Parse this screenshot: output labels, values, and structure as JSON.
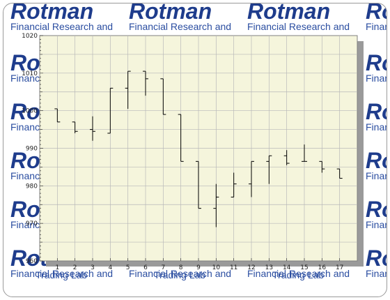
{
  "watermark": {
    "logo": "Rotman",
    "line1": "Financial Research and",
    "line2": "Trading Lab"
  },
  "colors": {
    "plot_bg": "#f5f5dc",
    "grid": "#b8b8b8",
    "bars": "#000000",
    "logo": "#1e3c8c"
  },
  "chart_data": {
    "type": "ohlc",
    "title": "",
    "xlabel": "",
    "ylabel": "",
    "ylim": [
      960,
      1020
    ],
    "xlim": [
      0,
      18
    ],
    "yticks": [
      960,
      970,
      980,
      990,
      1000,
      1010,
      1020
    ],
    "xticks": [
      1,
      2,
      3,
      4,
      5,
      6,
      7,
      8,
      9,
      10,
      11,
      12,
      13,
      14,
      15,
      16,
      17
    ],
    "grid": true,
    "points": [
      {
        "x": 1,
        "open": 1000.5,
        "high": 1000.5,
        "low": 997,
        "close": 997
      },
      {
        "x": 2,
        "open": 997,
        "high": 997,
        "low": 994,
        "close": 994.5
      },
      {
        "x": 3,
        "open": 995,
        "high": 998.5,
        "low": 992,
        "close": 994.5
      },
      {
        "x": 4,
        "open": 994,
        "high": 1006,
        "low": 994,
        "close": 1006
      },
      {
        "x": 5,
        "open": 1006,
        "high": 1010.5,
        "low": 1000.5,
        "close": 1010.5
      },
      {
        "x": 6,
        "open": 1010.5,
        "high": 1010.5,
        "low": 1004,
        "close": 1008.5
      },
      {
        "x": 7,
        "open": 1008.5,
        "high": 1008.5,
        "low": 999,
        "close": 999
      },
      {
        "x": 8,
        "open": 999,
        "high": 999,
        "low": 986.5,
        "close": 986.5
      },
      {
        "x": 9,
        "open": 986.5,
        "high": 986.5,
        "low": 974,
        "close": 974
      },
      {
        "x": 10,
        "open": 974,
        "high": 980.5,
        "low": 969,
        "close": 977
      },
      {
        "x": 11,
        "open": 977,
        "high": 983.5,
        "low": 977,
        "close": 980.5
      },
      {
        "x": 12,
        "open": 980.5,
        "high": 986.5,
        "low": 977,
        "close": 986.5
      },
      {
        "x": 13,
        "open": 986.5,
        "high": 988,
        "low": 980.5,
        "close": 988
      },
      {
        "x": 14,
        "open": 988,
        "high": 989.5,
        "low": 985.5,
        "close": 986
      },
      {
        "x": 15,
        "open": 986.5,
        "high": 991,
        "low": 986.5,
        "close": 986.5
      },
      {
        "x": 16,
        "open": 986.5,
        "high": 986.5,
        "low": 983.5,
        "close": 984.5
      },
      {
        "x": 17,
        "open": 984.5,
        "high": 984.5,
        "low": 982,
        "close": 982
      }
    ]
  }
}
